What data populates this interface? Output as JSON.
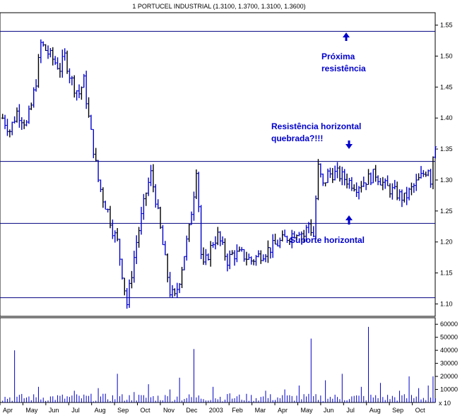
{
  "chart_data": {
    "type": "ohlc",
    "title": "1 PORTUCEL INDUSTRIAL (1.3100, 1.3700, 1.3100, 1.3600)",
    "x_labels": [
      "Apr",
      "May",
      "Jun",
      "Jul",
      "Aug",
      "Sep",
      "Oct",
      "Nov",
      "Dec",
      "2003",
      "Feb",
      "Mar",
      "Apr",
      "May",
      "Jun",
      "Jul",
      "Aug",
      "Sep",
      "Oct"
    ],
    "price_axis": {
      "ylim": [
        1.08,
        1.57
      ],
      "ticks": [
        "1.10",
        "1.15",
        "1.20",
        "1.25",
        "1.30",
        "1.35",
        "1.40",
        "1.45",
        "1.50",
        "1.55"
      ]
    },
    "volume_axis": {
      "ylim": [
        0,
        65000
      ],
      "ticks": [
        "10000",
        "20000",
        "30000",
        "40000",
        "50000",
        "60000"
      ],
      "multiplier_label": "x 10"
    },
    "horizontal_lines": [
      1.54,
      1.33,
      1.23,
      1.11
    ],
    "annotations": {
      "next_resistance_1": "Próxima",
      "next_resistance_2": "resistência",
      "broken_resistance_1": "Resistência horizontal",
      "broken_resistance_2": "quebrada?!!!",
      "support": "Suporte horizontal"
    },
    "price_keypoints": [
      [
        0,
        1.4
      ],
      [
        3,
        1.38
      ],
      [
        6,
        1.41
      ],
      [
        8,
        1.4
      ],
      [
        10,
        1.39
      ],
      [
        12,
        1.42
      ],
      [
        14,
        1.46
      ],
      [
        16,
        1.52
      ],
      [
        18,
        1.51
      ],
      [
        20,
        1.5
      ],
      [
        22,
        1.49
      ],
      [
        24,
        1.48
      ],
      [
        26,
        1.5
      ],
      [
        28,
        1.47
      ],
      [
        30,
        1.45
      ],
      [
        32,
        1.44
      ],
      [
        34,
        1.46
      ],
      [
        36,
        1.4
      ],
      [
        38,
        1.35
      ],
      [
        40,
        1.3
      ],
      [
        42,
        1.27
      ],
      [
        44,
        1.25
      ],
      [
        46,
        1.22
      ],
      [
        48,
        1.2
      ],
      [
        50,
        1.15
      ],
      [
        52,
        1.1
      ],
      [
        54,
        1.15
      ],
      [
        56,
        1.2
      ],
      [
        58,
        1.24
      ],
      [
        60,
        1.28
      ],
      [
        62,
        1.31
      ],
      [
        64,
        1.27
      ],
      [
        66,
        1.22
      ],
      [
        68,
        1.17
      ],
      [
        70,
        1.12
      ],
      [
        72,
        1.11
      ],
      [
        74,
        1.14
      ],
      [
        76,
        1.18
      ],
      [
        78,
        1.22
      ],
      [
        80,
        1.28
      ],
      [
        81,
        1.32
      ],
      [
        82,
        1.26
      ],
      [
        83,
        1.18
      ],
      [
        84,
        1.16
      ],
      [
        86,
        1.18
      ],
      [
        88,
        1.2
      ],
      [
        90,
        1.21
      ],
      [
        92,
        1.19
      ],
      [
        94,
        1.17
      ],
      [
        96,
        1.18
      ],
      [
        100,
        1.18
      ],
      [
        104,
        1.17
      ],
      [
        108,
        1.18
      ],
      [
        112,
        1.19
      ],
      [
        116,
        1.2
      ],
      [
        120,
        1.21
      ],
      [
        124,
        1.22
      ],
      [
        126,
        1.21
      ],
      [
        128,
        1.23
      ],
      [
        130,
        1.21
      ],
      [
        131,
        1.27
      ],
      [
        132,
        1.32
      ],
      [
        134,
        1.29
      ],
      [
        136,
        1.31
      ],
      [
        140,
        1.31
      ],
      [
        144,
        1.3
      ],
      [
        148,
        1.29
      ],
      [
        152,
        1.3
      ],
      [
        156,
        1.31
      ],
      [
        160,
        1.29
      ],
      [
        164,
        1.28
      ],
      [
        168,
        1.27
      ],
      [
        170,
        1.28
      ],
      [
        172,
        1.29
      ],
      [
        174,
        1.3
      ],
      [
        176,
        1.31
      ],
      [
        178,
        1.32
      ],
      [
        179,
        1.3
      ],
      [
        180,
        1.34
      ],
      [
        181,
        1.36
      ]
    ],
    "volume_spikes": [
      [
        5,
        40000
      ],
      [
        15,
        12000
      ],
      [
        30,
        9000
      ],
      [
        40,
        11000
      ],
      [
        48,
        22000
      ],
      [
        55,
        8000
      ],
      [
        61,
        14000
      ],
      [
        70,
        10000
      ],
      [
        74,
        19000
      ],
      [
        80,
        41000
      ],
      [
        88,
        12000
      ],
      [
        95,
        7000
      ],
      [
        110,
        9000
      ],
      [
        118,
        10000
      ],
      [
        124,
        13000
      ],
      [
        129,
        49000
      ],
      [
        135,
        17000
      ],
      [
        142,
        22000
      ],
      [
        150,
        12000
      ],
      [
        153,
        58000
      ],
      [
        158,
        15000
      ],
      [
        166,
        9000
      ],
      [
        170,
        20000
      ],
      [
        174,
        11000
      ],
      [
        178,
        13000
      ],
      [
        180,
        20000
      ]
    ]
  }
}
